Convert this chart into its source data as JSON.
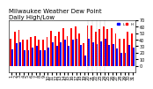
{
  "title": "Milwaukee Weather Dew Point",
  "subtitle": "Daily High/Low",
  "high_values": [
    42,
    52,
    55,
    40,
    40,
    44,
    46,
    40,
    40,
    44,
    54,
    46,
    52,
    58,
    46,
    58,
    60,
    50,
    35,
    62,
    62,
    52,
    56,
    60,
    56,
    58,
    50,
    42,
    42,
    52,
    50
  ],
  "low_values": [
    25,
    35,
    36,
    24,
    24,
    28,
    30,
    24,
    24,
    28,
    36,
    30,
    36,
    40,
    30,
    40,
    42,
    32,
    16,
    42,
    36,
    34,
    38,
    42,
    32,
    34,
    26,
    20,
    20,
    32,
    28
  ],
  "days": [
    1,
    2,
    3,
    4,
    5,
    6,
    7,
    8,
    9,
    10,
    11,
    12,
    13,
    14,
    15,
    16,
    17,
    18,
    19,
    20,
    21,
    22,
    23,
    24,
    25,
    26,
    27,
    28,
    29,
    30,
    31
  ],
  "ylim": [
    -10,
    70
  ],
  "yticks": [
    0,
    10,
    20,
    30,
    40,
    50,
    60,
    70
  ],
  "high_color": "#ff0000",
  "low_color": "#0000ff",
  "bg_color": "#ffffff",
  "title_fontsize": 5,
  "tick_fontsize": 3.5,
  "bar_width": 0.4,
  "legend_fontsize": 3
}
